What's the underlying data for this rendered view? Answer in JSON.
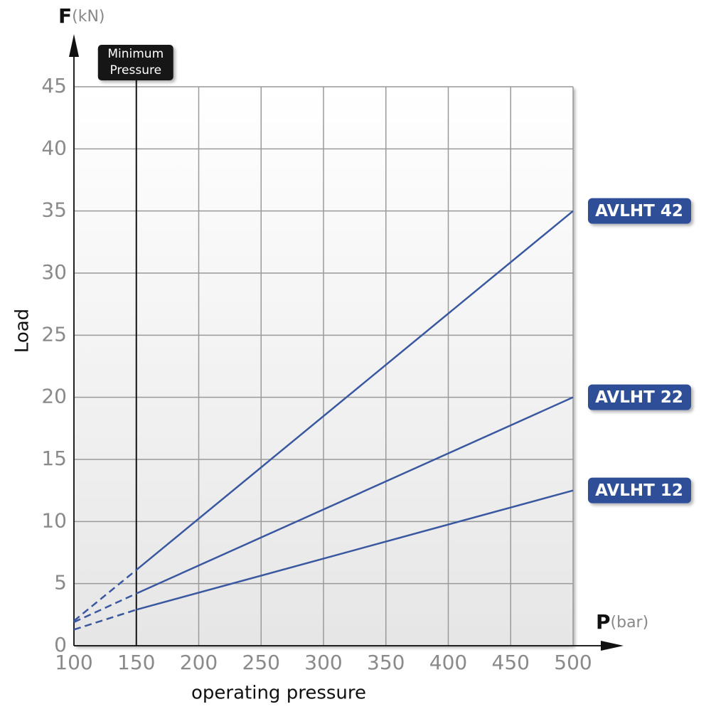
{
  "chart_data": {
    "type": "line",
    "y_symbol": "F",
    "y_unit": "(kN)",
    "ylabel": "Load",
    "x_symbol": "P",
    "x_unit": "(bar)",
    "xlabel": "operating pressure",
    "x": [
      100,
      150,
      500
    ],
    "xlim": [
      100,
      500
    ],
    "xticks": [
      100,
      150,
      200,
      250,
      300,
      350,
      400,
      450,
      500
    ],
    "ylim": [
      0,
      45
    ],
    "yticks": [
      0,
      5,
      10,
      15,
      20,
      25,
      30,
      35,
      40,
      45
    ],
    "grid": true,
    "min_pressure": {
      "x": 150,
      "label": [
        "Minimum",
        "Pressure"
      ]
    },
    "series": [
      {
        "name": "AVLHT 42",
        "color": "#3a58a0",
        "values": [
          2,
          6.1,
          35
        ]
      },
      {
        "name": "AVLHT 22",
        "color": "#3a58a0",
        "values": [
          1.9,
          4.2,
          20
        ]
      },
      {
        "name": "AVLHT 12",
        "color": "#3a58a0",
        "values": [
          1.3,
          2.9,
          12.5
        ]
      }
    ]
  }
}
